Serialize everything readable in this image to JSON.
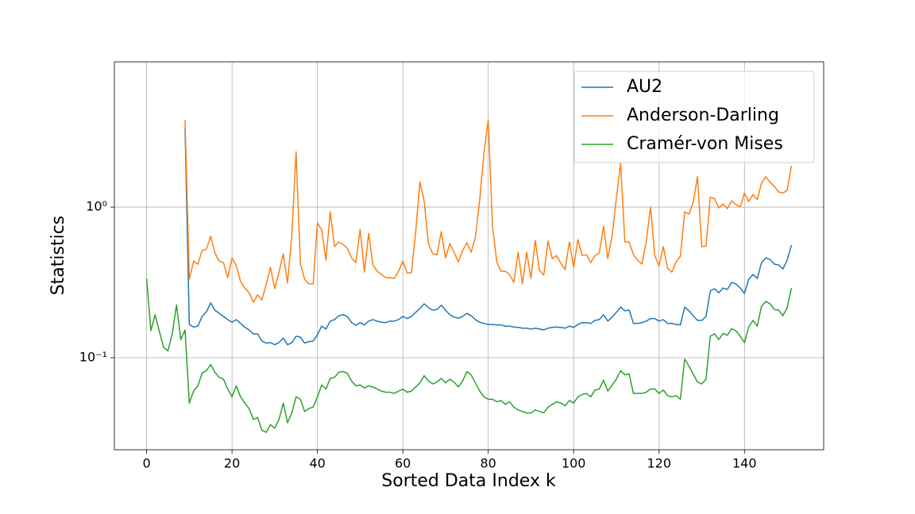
{
  "chart_data": {
    "type": "line",
    "xlabel": "Sorted Data Index k",
    "ylabel": "Statistics",
    "x": [
      0,
      1,
      2,
      3,
      4,
      5,
      6,
      7,
      8,
      9,
      10,
      11,
      12,
      13,
      14,
      15,
      16,
      17,
      18,
      19,
      20,
      21,
      22,
      23,
      24,
      25,
      26,
      27,
      28,
      29,
      30,
      31,
      32,
      33,
      34,
      35,
      36,
      37,
      38,
      39,
      40,
      41,
      42,
      43,
      44,
      45,
      46,
      47,
      48,
      49,
      50,
      51,
      52,
      53,
      54,
      55,
      56,
      57,
      58,
      59,
      60,
      61,
      62,
      63,
      64,
      65,
      66,
      67,
      68,
      69,
      70,
      71,
      72,
      73,
      74,
      75,
      76,
      77,
      78,
      79,
      80,
      81,
      82,
      83,
      84,
      85,
      86,
      87,
      88,
      89,
      90,
      91,
      92,
      93,
      94,
      95,
      96,
      97,
      98,
      99,
      100,
      101,
      102,
      103,
      104,
      105,
      106,
      107,
      108,
      109,
      110,
      111,
      112,
      113,
      114,
      115,
      116,
      117,
      118,
      119,
      120,
      121,
      122,
      123,
      124,
      125,
      126,
      127,
      128,
      129,
      130,
      131,
      132,
      133,
      134,
      135,
      136,
      137,
      138,
      139,
      140,
      141,
      142,
      143,
      144,
      145,
      146,
      147,
      148,
      149,
      150,
      151
    ],
    "series": [
      {
        "name": "AU2",
        "color": "#1f77b4",
        "values": [
          null,
          null,
          null,
          null,
          null,
          null,
          null,
          null,
          null,
          3.32,
          0.166,
          0.16,
          0.162,
          0.188,
          0.202,
          0.231,
          0.207,
          0.197,
          0.188,
          0.179,
          0.172,
          0.179,
          0.169,
          0.159,
          0.153,
          0.144,
          0.144,
          0.129,
          0.125,
          0.126,
          0.122,
          0.126,
          0.135,
          0.122,
          0.126,
          0.139,
          0.137,
          0.125,
          0.128,
          0.129,
          0.142,
          0.162,
          0.155,
          0.175,
          0.179,
          0.19,
          0.193,
          0.188,
          0.171,
          0.164,
          0.171,
          0.165,
          0.175,
          0.179,
          0.175,
          0.172,
          0.171,
          0.175,
          0.175,
          0.179,
          0.188,
          0.182,
          0.188,
          0.2,
          0.212,
          0.228,
          0.215,
          0.207,
          0.209,
          0.223,
          0.207,
          0.193,
          0.186,
          0.183,
          0.188,
          0.197,
          0.19,
          0.179,
          0.172,
          0.169,
          0.166,
          0.166,
          0.165,
          0.165,
          0.162,
          0.162,
          0.16,
          0.159,
          0.157,
          0.157,
          0.155,
          0.157,
          0.155,
          0.153,
          0.157,
          0.159,
          0.16,
          0.159,
          0.157,
          0.162,
          0.159,
          0.166,
          0.171,
          0.171,
          0.169,
          0.177,
          0.179,
          0.193,
          0.175,
          0.186,
          0.2,
          0.217,
          0.205,
          0.207,
          0.169,
          0.169,
          0.171,
          0.175,
          0.182,
          0.182,
          0.175,
          0.179,
          0.169,
          0.169,
          0.166,
          0.165,
          0.217,
          0.205,
          0.19,
          0.177,
          0.177,
          0.188,
          0.277,
          0.287,
          0.27,
          0.29,
          0.284,
          0.316,
          0.309,
          0.29,
          0.267,
          0.332,
          0.357,
          0.336,
          0.428,
          0.46,
          0.449,
          0.418,
          0.413,
          0.388,
          0.444,
          0.559
        ]
      },
      {
        "name": "Anderson-Darling",
        "color": "#ff7f0e",
        "values": [
          null,
          null,
          null,
          null,
          null,
          null,
          null,
          null,
          null,
          3.79,
          0.332,
          0.438,
          0.418,
          0.514,
          0.526,
          0.639,
          0.495,
          0.438,
          0.428,
          0.34,
          0.46,
          0.408,
          0.32,
          0.29,
          0.27,
          0.234,
          0.261,
          0.242,
          0.305,
          0.398,
          0.287,
          0.37,
          0.489,
          0.313,
          0.646,
          2.33,
          0.423,
          0.332,
          0.309,
          0.309,
          0.785,
          0.704,
          0.444,
          0.93,
          0.546,
          0.587,
          0.566,
          0.532,
          0.46,
          0.428,
          0.712,
          0.37,
          0.67,
          0.413,
          0.375,
          0.357,
          0.34,
          0.34,
          0.336,
          0.375,
          0.438,
          0.366,
          0.366,
          0.679,
          1.47,
          1.09,
          0.573,
          0.489,
          0.483,
          0.687,
          0.46,
          0.573,
          0.501,
          0.433,
          0.514,
          0.58,
          0.501,
          0.631,
          1.12,
          2.28,
          3.79,
          0.748,
          0.433,
          0.375,
          0.375,
          0.357,
          0.316,
          0.501,
          0.309,
          0.501,
          0.336,
          0.601,
          0.38,
          0.353,
          0.594,
          0.455,
          0.477,
          0.423,
          0.384,
          0.587,
          0.398,
          0.608,
          0.477,
          0.483,
          0.428,
          0.477,
          0.495,
          0.748,
          0.455,
          0.646,
          1.14,
          1.95,
          0.587,
          0.587,
          0.483,
          0.444,
          0.418,
          0.587,
          1.0,
          0.477,
          0.408,
          0.546,
          0.393,
          0.37,
          0.433,
          0.471,
          0.93,
          0.897,
          1.08,
          1.59,
          0.546,
          0.552,
          1.16,
          1.14,
          0.988,
          1.05,
          0.976,
          1.1,
          1.04,
          1.0,
          1.24,
          1.09,
          1.21,
          1.12,
          1.44,
          1.59,
          1.46,
          1.37,
          1.26,
          1.24,
          1.29,
          1.88
        ]
      },
      {
        "name": "Cramér-von Mises",
        "color": "#2ca02c",
        "values": [
          0.336,
          0.151,
          0.193,
          0.149,
          0.117,
          0.111,
          0.144,
          0.224,
          0.132,
          0.153,
          0.05,
          0.06,
          0.065,
          0.079,
          0.082,
          0.09,
          0.08,
          0.074,
          0.072,
          0.062,
          0.055,
          0.065,
          0.055,
          0.05,
          0.046,
          0.039,
          0.04,
          0.033,
          0.032,
          0.036,
          0.034,
          0.039,
          0.05,
          0.037,
          0.043,
          0.055,
          0.053,
          0.044,
          0.046,
          0.047,
          0.055,
          0.066,
          0.062,
          0.073,
          0.074,
          0.08,
          0.081,
          0.079,
          0.07,
          0.065,
          0.066,
          0.063,
          0.065,
          0.064,
          0.062,
          0.06,
          0.059,
          0.059,
          0.058,
          0.06,
          0.062,
          0.059,
          0.06,
          0.064,
          0.068,
          0.076,
          0.07,
          0.067,
          0.069,
          0.073,
          0.068,
          0.072,
          0.069,
          0.064,
          0.07,
          0.081,
          0.077,
          0.068,
          0.06,
          0.055,
          0.053,
          0.053,
          0.051,
          0.052,
          0.049,
          0.051,
          0.047,
          0.045,
          0.044,
          0.043,
          0.043,
          0.045,
          0.044,
          0.043,
          0.047,
          0.049,
          0.051,
          0.05,
          0.048,
          0.052,
          0.05,
          0.055,
          0.057,
          0.058,
          0.055,
          0.061,
          0.062,
          0.071,
          0.06,
          0.066,
          0.072,
          0.082,
          0.077,
          0.078,
          0.058,
          0.058,
          0.058,
          0.059,
          0.062,
          0.062,
          0.058,
          0.061,
          0.056,
          0.055,
          0.056,
          0.053,
          0.098,
          0.088,
          0.078,
          0.069,
          0.067,
          0.072,
          0.139,
          0.144,
          0.132,
          0.145,
          0.141,
          0.156,
          0.151,
          0.139,
          0.126,
          0.16,
          0.177,
          0.162,
          0.22,
          0.236,
          0.228,
          0.209,
          0.207,
          0.19,
          0.215,
          0.29
        ]
      }
    ],
    "xlim": [
      -7.55,
      158.55
    ],
    "ylim": [
      0.0245,
      9.2
    ],
    "xticks": [
      0,
      20,
      40,
      60,
      80,
      100,
      120,
      140
    ],
    "yticks": [
      {
        "value": 0.1,
        "label": "10⁻¹"
      },
      {
        "value": 1,
        "label": "10⁰"
      }
    ],
    "yscale": "log",
    "grid": true,
    "legend": "upper right"
  }
}
